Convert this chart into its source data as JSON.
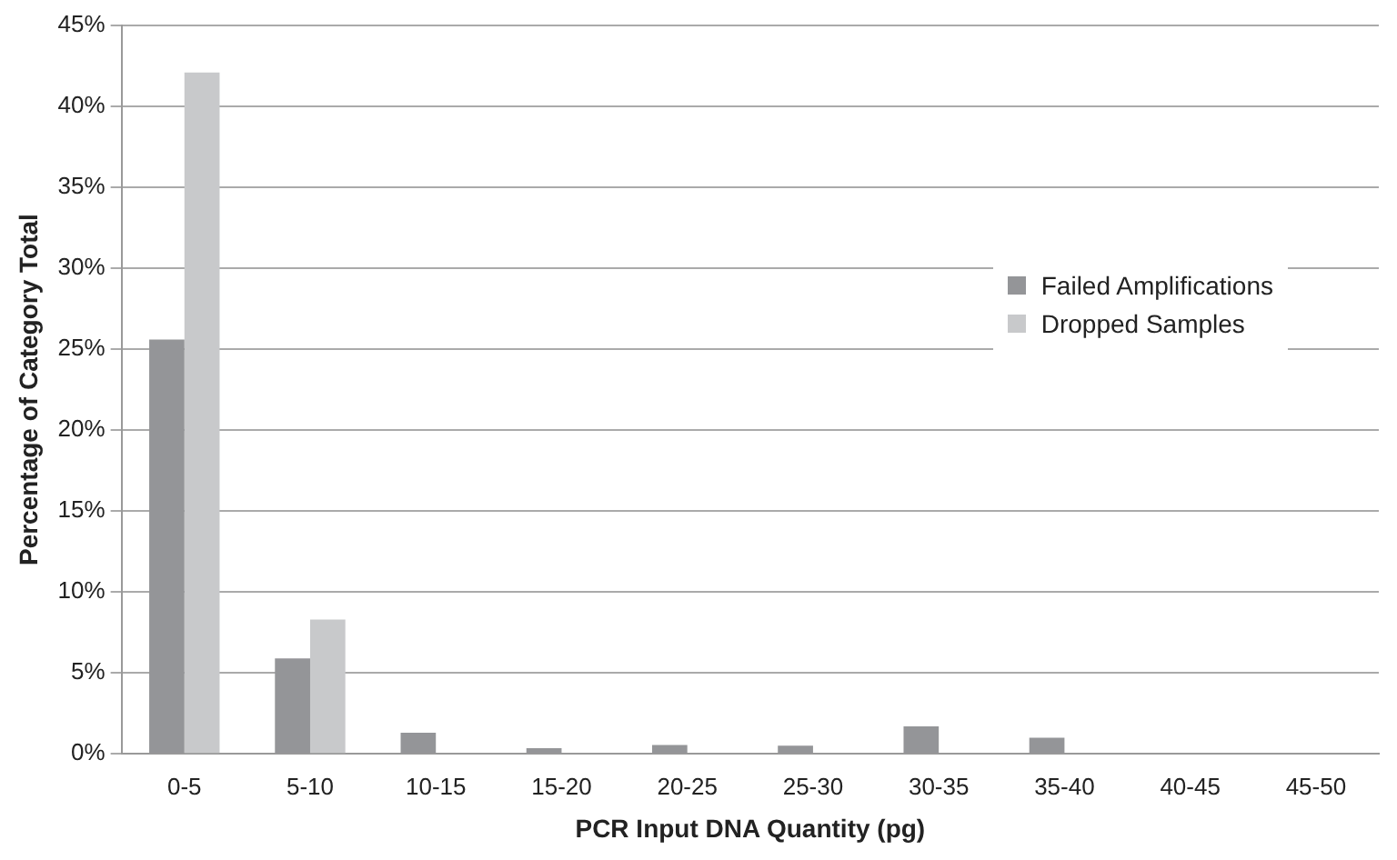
{
  "chart_data": {
    "type": "bar",
    "xlabel": "PCR Input DNA Quantity (pg)",
    "ylabel": "Percentage of Category Total",
    "categories": [
      "0-5",
      "5-10",
      "10-15",
      "15-20",
      "20-25",
      "25-30",
      "30-35",
      "35-40",
      "40-45",
      "45-50"
    ],
    "series": [
      {
        "name": "Failed Amplifications",
        "color": "#949598",
        "values": [
          25.6,
          5.9,
          1.3,
          0.35,
          0.55,
          0.5,
          1.7,
          1.0,
          0,
          0
        ]
      },
      {
        "name": "Dropped Samples",
        "color": "#c8c9cb",
        "values": [
          42.1,
          8.3,
          0,
          0,
          0,
          0,
          0,
          0,
          0,
          0
        ]
      }
    ],
    "ylim": [
      0,
      45
    ],
    "yticks": [
      {
        "value": 0,
        "label": "0%"
      },
      {
        "value": 5,
        "label": "5%"
      },
      {
        "value": 10,
        "label": "10%"
      },
      {
        "value": 15,
        "label": "15%"
      },
      {
        "value": 20,
        "label": "20%"
      },
      {
        "value": 25,
        "label": "25%"
      },
      {
        "value": 30,
        "label": "30%"
      },
      {
        "value": 35,
        "label": "35%"
      },
      {
        "value": 40,
        "label": "40%"
      },
      {
        "value": 45,
        "label": "45%"
      }
    ],
    "grid": "y",
    "legend": "top right"
  }
}
